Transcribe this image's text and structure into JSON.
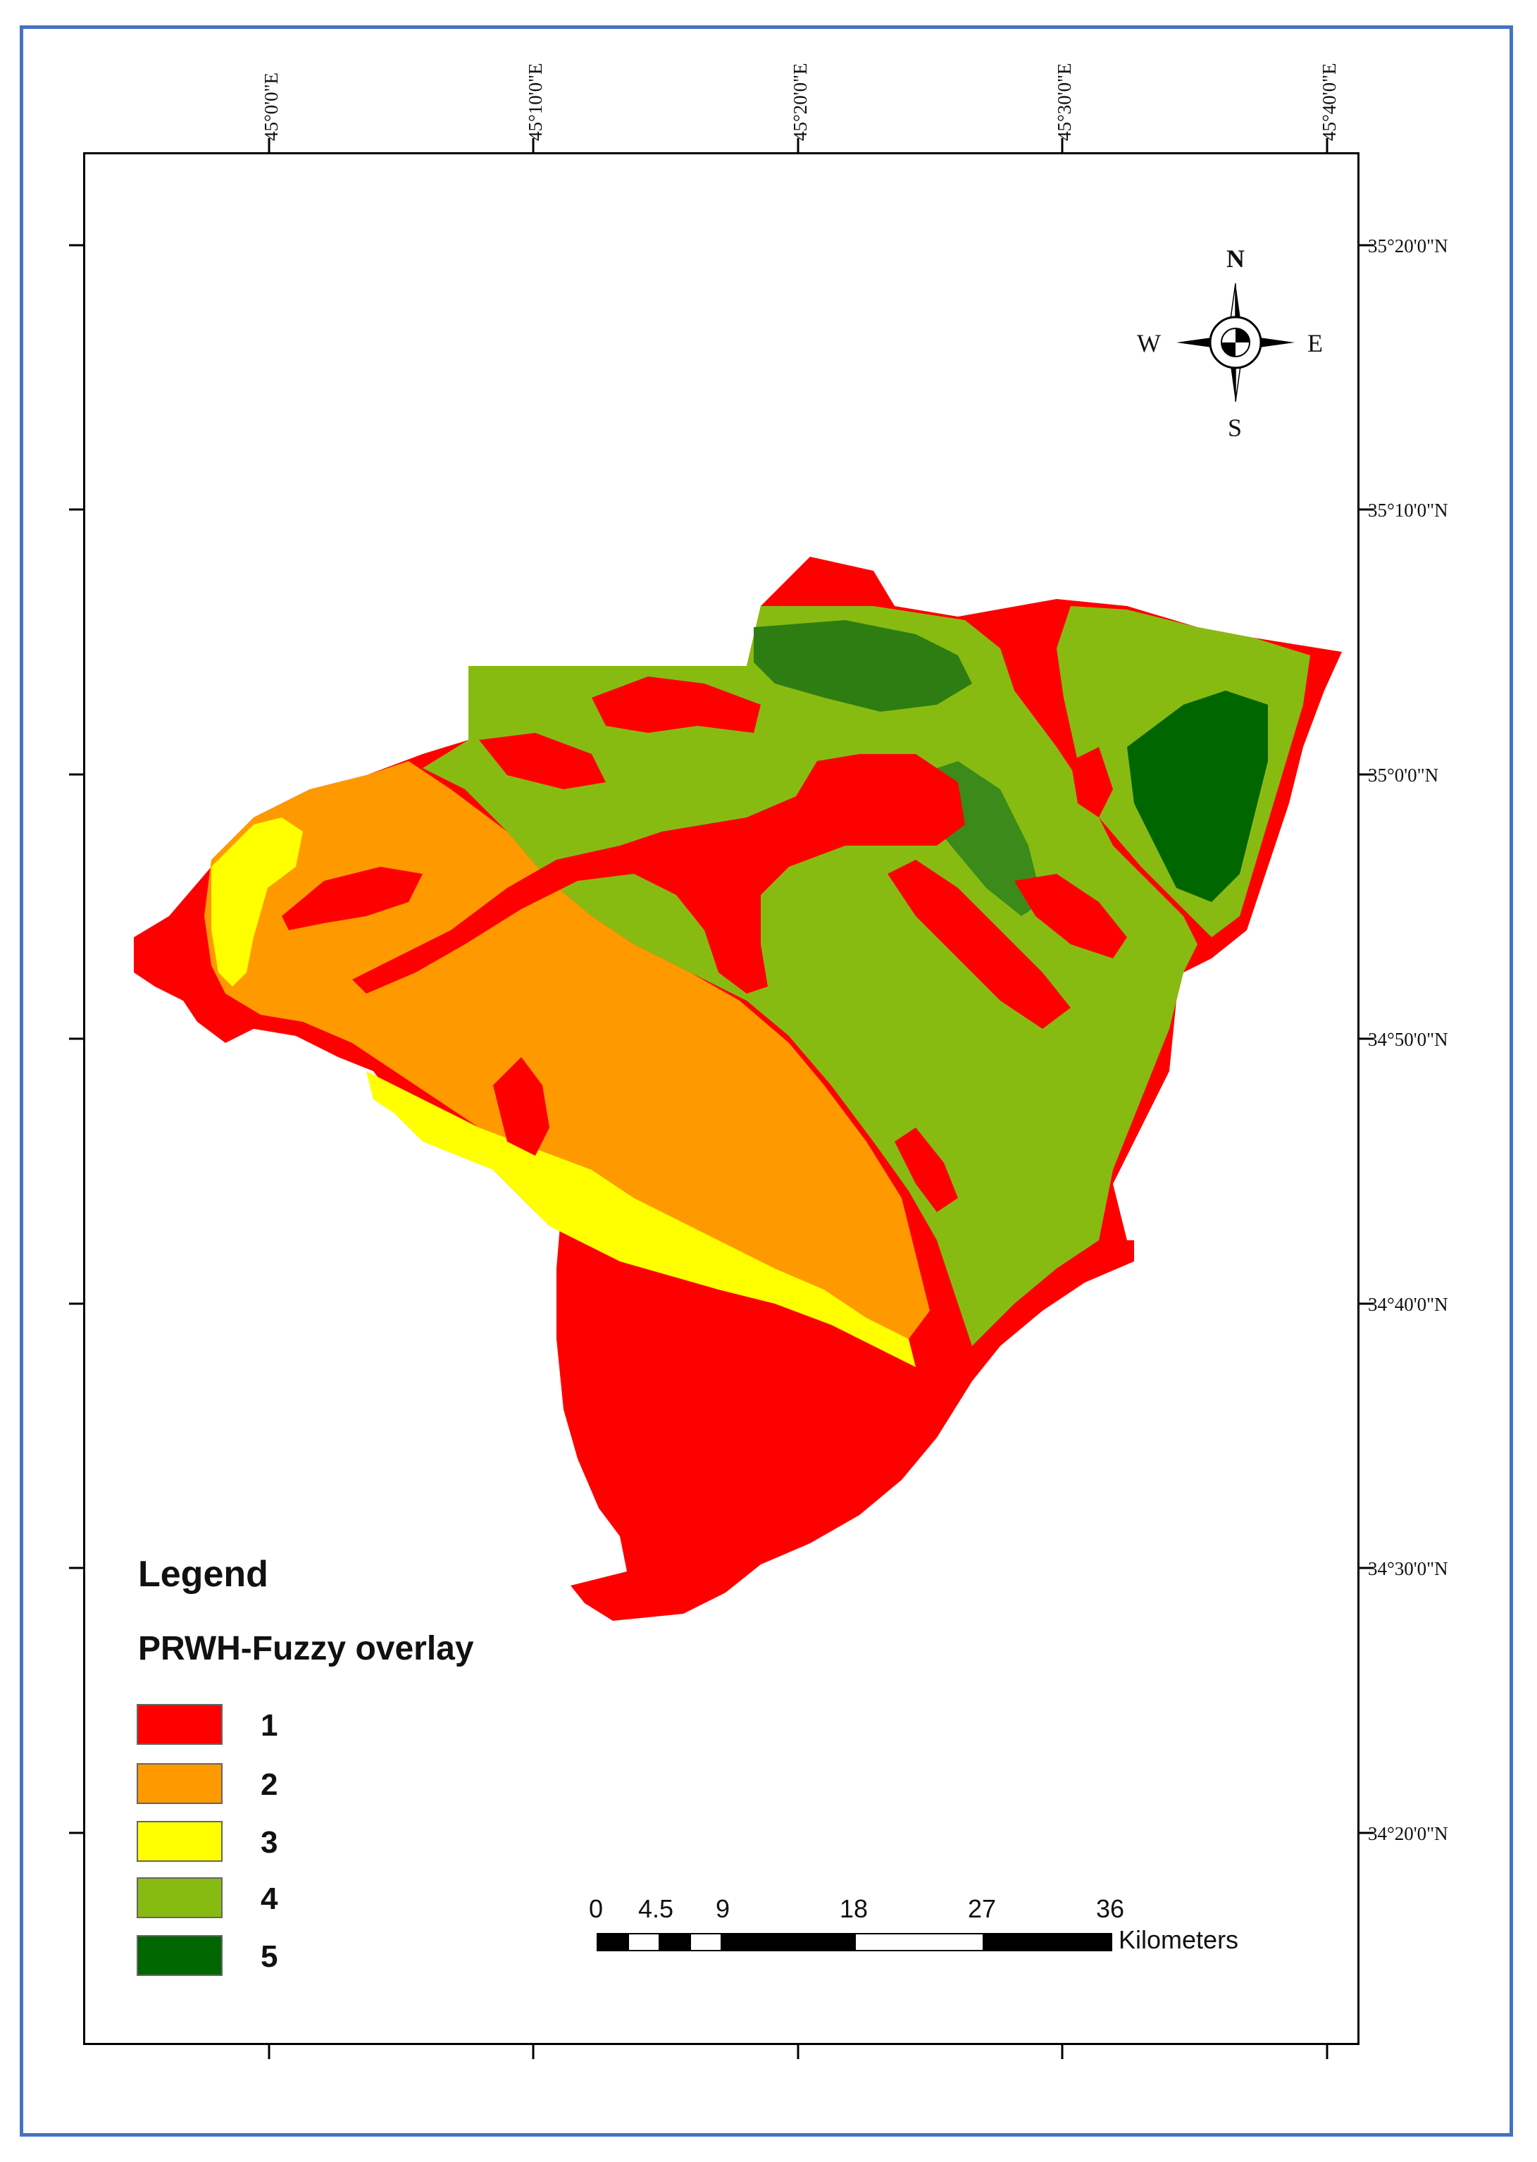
{
  "frame": {
    "outer_border_color": "#4472c4",
    "map_border_color": "#000000"
  },
  "graticule": {
    "longitude_labels": [
      "45°0'0\"E",
      "45°10'0\"E",
      "45°20'0\"E",
      "45°30'0\"E",
      "45°40'0\"E"
    ],
    "latitude_labels": [
      "35°20'0\"N",
      "35°10'0\"N",
      "35°0'0\"N",
      "34°50'0\"N",
      "34°40'0\"N",
      "34°30'0\"N",
      "34°20'0\"N"
    ]
  },
  "north_arrow": {
    "n": "N",
    "s": "S",
    "e": "E",
    "w": "W"
  },
  "legend": {
    "title": "Legend",
    "subtitle": "PRWH-Fuzzy overlay",
    "classes": [
      {
        "label": "1",
        "color": "#ff0000"
      },
      {
        "label": "2",
        "color": "#ff9900"
      },
      {
        "label": "3",
        "color": "#ffff00"
      },
      {
        "label": "4",
        "color": "#88bb11"
      },
      {
        "label": "5",
        "color": "#006600"
      }
    ]
  },
  "scale_bar": {
    "ticks": [
      "0",
      "4.5",
      "9",
      "18",
      "27",
      "36"
    ],
    "unit": "Kilometers"
  }
}
